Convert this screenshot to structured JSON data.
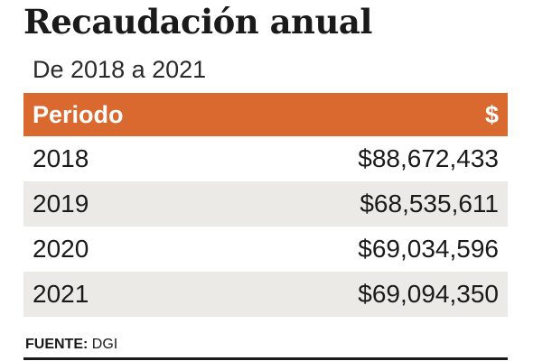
{
  "title": "Recaudación anual",
  "subtitle": "De 2018 a 2021",
  "table": {
    "headers": [
      "Periodo",
      "$"
    ],
    "rows": [
      {
        "period": "2018",
        "amount": "$88,672,433"
      },
      {
        "period": "2019",
        "amount": "$68,535,611"
      },
      {
        "period": "2020",
        "amount": "$69,034,596"
      },
      {
        "period": "2021",
        "amount": "$69,094,350"
      }
    ]
  },
  "source": {
    "label": "FUENTE:",
    "value": "DGI"
  },
  "colors": {
    "header_bg": "#d9692f",
    "row_shade": "#eceae6"
  },
  "chart_data": {
    "type": "table",
    "title": "Recaudación anual",
    "subtitle": "De 2018 a 2021",
    "columns": [
      "Periodo",
      "$"
    ],
    "rows": [
      [
        "2018",
        "$88,672,433"
      ],
      [
        "2019",
        "$68,535,611"
      ],
      [
        "2020",
        "$69,034,596"
      ],
      [
        "2021",
        "$69,094,350"
      ]
    ],
    "values": [
      88672433,
      68535611,
      69034596,
      69094350
    ],
    "categories": [
      "2018",
      "2019",
      "2020",
      "2021"
    ]
  }
}
